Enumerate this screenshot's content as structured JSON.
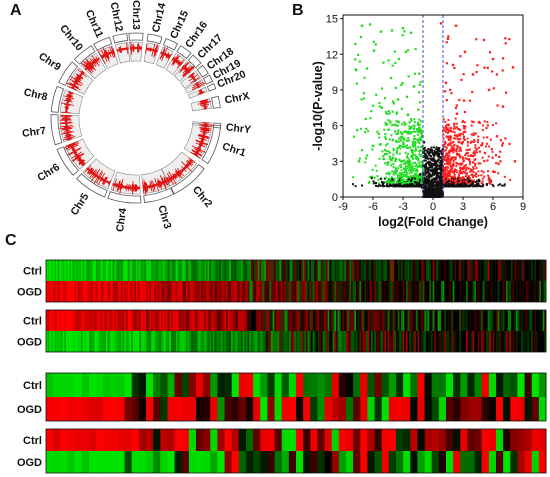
{
  "panels": {
    "a": "A",
    "b": "B",
    "c": "C"
  },
  "colors": {
    "up": "#ff2020",
    "down": "#22dd22",
    "neutral": "#111111",
    "threshold": "#3333cc",
    "heat_high": "#ff0000",
    "heat_low": "#00ee00",
    "heat_mid": "#000000"
  },
  "chart_data": [
    {
      "type": "circos",
      "chromosomes": [
        "Chr1",
        "Chr2",
        "Chr3",
        "Chr4",
        "Chr5",
        "Chr6",
        "Chr7",
        "Chr8",
        "Chr9",
        "Chr10",
        "Chr11",
        "Chr12",
        "Chr13",
        "Chr14",
        "Chr15",
        "Chr16",
        "Chr17",
        "Chr18",
        "Chr19",
        "Chr20",
        "ChrX",
        "ChrY"
      ],
      "track_color": "red"
    },
    {
      "type": "scatter",
      "xlabel": "log2(Fold Change)",
      "ylabel": "-log10(P-value)",
      "xticks": [
        -9,
        -6,
        -3,
        0,
        3,
        6,
        9
      ],
      "yticks": [
        0,
        3,
        6,
        9,
        12,
        15
      ],
      "xlim": [
        -9,
        9
      ],
      "ylim": [
        0,
        15.3
      ],
      "thresholds_x": [
        -1,
        1
      ],
      "series": [
        {
          "name": "",
          "color": "down",
          "points": [
            [
              -7.1,
              14.4
            ],
            [
              -6.3,
              14.5
            ],
            [
              -5.2,
              13.9
            ],
            [
              -4.1,
              14.0
            ],
            [
              -3.0,
              14.2
            ],
            [
              -2.2,
              13.8
            ],
            [
              -5.9,
              12.3
            ],
            [
              -2.7,
              12.2
            ],
            [
              -6.6,
              10.8
            ],
            [
              -4.2,
              10.0
            ],
            [
              -1.9,
              9.3
            ],
            [
              -3.5,
              8.2
            ],
            [
              -5.1,
              7.5
            ],
            [
              -2.5,
              6.9
            ],
            [
              -4.6,
              6.1
            ],
            [
              -1.6,
              5.7
            ],
            [
              -3.2,
              5.0
            ],
            [
              -6.0,
              4.3
            ],
            [
              -2.0,
              4.6
            ],
            [
              -4.8,
              3.6
            ],
            [
              -7.4,
              3.0
            ],
            [
              -3.7,
              3.2
            ],
            [
              -2.3,
              2.8
            ]
          ]
        },
        {
          "name": "",
          "color": "up",
          "points": [
            [
              0.8,
              14.6
            ],
            [
              2.3,
              14.4
            ],
            [
              1.5,
              13.3
            ],
            [
              5.1,
              13.2
            ],
            [
              3.2,
              12.2
            ],
            [
              6.0,
              11.6
            ],
            [
              2.0,
              11.1
            ],
            [
              4.0,
              10.3
            ],
            [
              8.0,
              10.9
            ],
            [
              1.3,
              9.6
            ],
            [
              5.6,
              9.0
            ],
            [
              3.1,
              8.1
            ],
            [
              7.0,
              7.6
            ],
            [
              2.4,
              7.0
            ],
            [
              4.6,
              6.3
            ],
            [
              1.6,
              5.6
            ],
            [
              6.4,
              5.1
            ],
            [
              3.5,
              4.6
            ],
            [
              2.0,
              4.0
            ],
            [
              5.2,
              3.7
            ],
            [
              8.2,
              3.0
            ],
            [
              4.0,
              2.9
            ],
            [
              1.4,
              3.2
            ]
          ]
        },
        {
          "name": "",
          "color": "neutral",
          "points": [
            [
              -0.9,
              4.6
            ],
            [
              0.6,
              4.1
            ],
            [
              -0.4,
              3.6
            ],
            [
              0.2,
              3.0
            ],
            [
              -0.7,
              2.5
            ],
            [
              0.9,
              2.2
            ],
            [
              -1.3,
              1.9
            ],
            [
              0.4,
              1.6
            ],
            [
              -0.2,
              1.2
            ],
            [
              1.2,
              1.0
            ],
            [
              -1.1,
              0.8
            ]
          ]
        }
      ]
    },
    {
      "type": "heatmap",
      "row_labels": [
        "Ctrl",
        "OGD",
        "Ctrl",
        "OGD",
        "Ctrl",
        "OGD",
        "Ctrl",
        "OGD"
      ],
      "blocks": [
        {
          "rows": [
            "Ctrl",
            "OGD"
          ],
          "pattern": "green→black / red→black"
        },
        {
          "rows": [
            "Ctrl",
            "OGD"
          ],
          "pattern": "red→black / green→black"
        },
        {
          "rows": [
            "Ctrl",
            "OGD"
          ],
          "pattern": "green / red"
        },
        {
          "rows": [
            "Ctrl",
            "OGD"
          ],
          "pattern": "red / green"
        }
      ]
    }
  ]
}
